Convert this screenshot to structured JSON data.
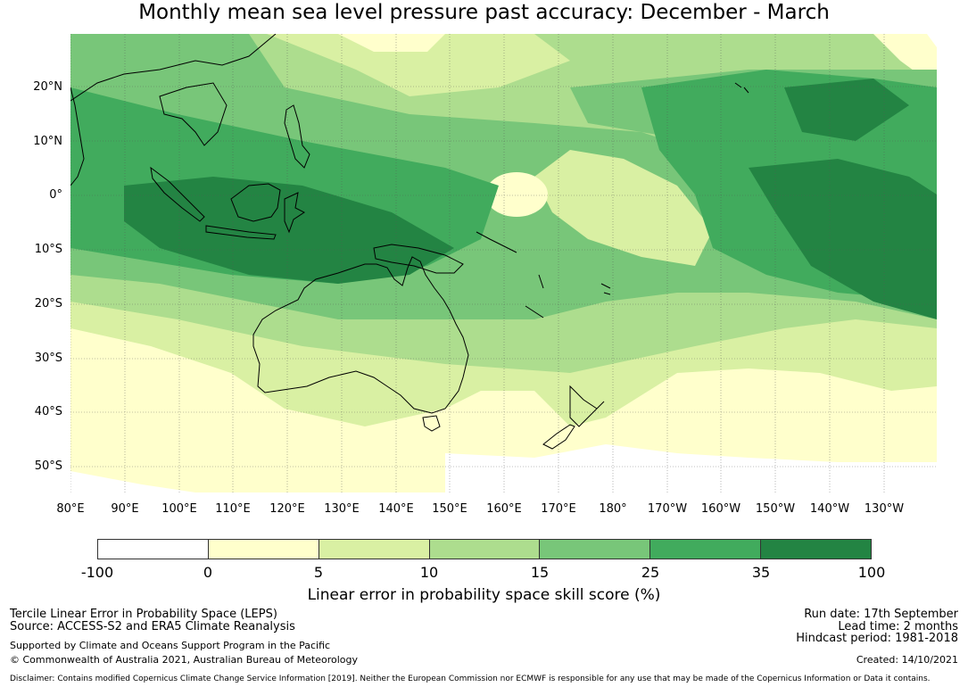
{
  "title": "Monthly mean sea level pressure past accuracy: December - March",
  "map": {
    "lat_labels": [
      "20°N",
      "10°N",
      "0°",
      "10°S",
      "20°S",
      "30°S",
      "40°S",
      "50°S"
    ],
    "lon_labels": [
      "80°E",
      "90°E",
      "100°E",
      "110°E",
      "120°E",
      "130°E",
      "140°E",
      "150°E",
      "160°E",
      "170°E",
      "180°",
      "170°W",
      "160°W",
      "150°W",
      "140°W",
      "130°W"
    ]
  },
  "colorbar": {
    "ticks": [
      "-100",
      "0",
      "5",
      "10",
      "15",
      "25",
      "35",
      "100"
    ],
    "colors": [
      "#ffffff",
      "#ffffcc",
      "#d9f0a3",
      "#addd8e",
      "#78c679",
      "#41ab5d",
      "#238443"
    ],
    "label": "Linear error in probability space skill score (%)"
  },
  "footer": {
    "method": "Tercile Linear Error in Probability Space (LEPS)",
    "source": "Source: ACCESS-S2 and ERA5 Climate Reanalysis",
    "support": "Supported by Climate and Oceans Support Program in the Pacific",
    "copyright": "© Commonwealth of Australia 2021, Australian Bureau of Meteorology",
    "run_date": "Run date: 17th September",
    "lead_time": "Lead time: 2 months",
    "hindcast": "Hindcast period: 1981-2018",
    "created": "Created: 14/10/2021",
    "disclaimer": "Disclaimer: Contains modified Copernicus Climate Change Service Information [2019]. Neither the European Commission nor ECMWF is responsible for any use that may be made of the Copernicus Information or Data it contains."
  }
}
